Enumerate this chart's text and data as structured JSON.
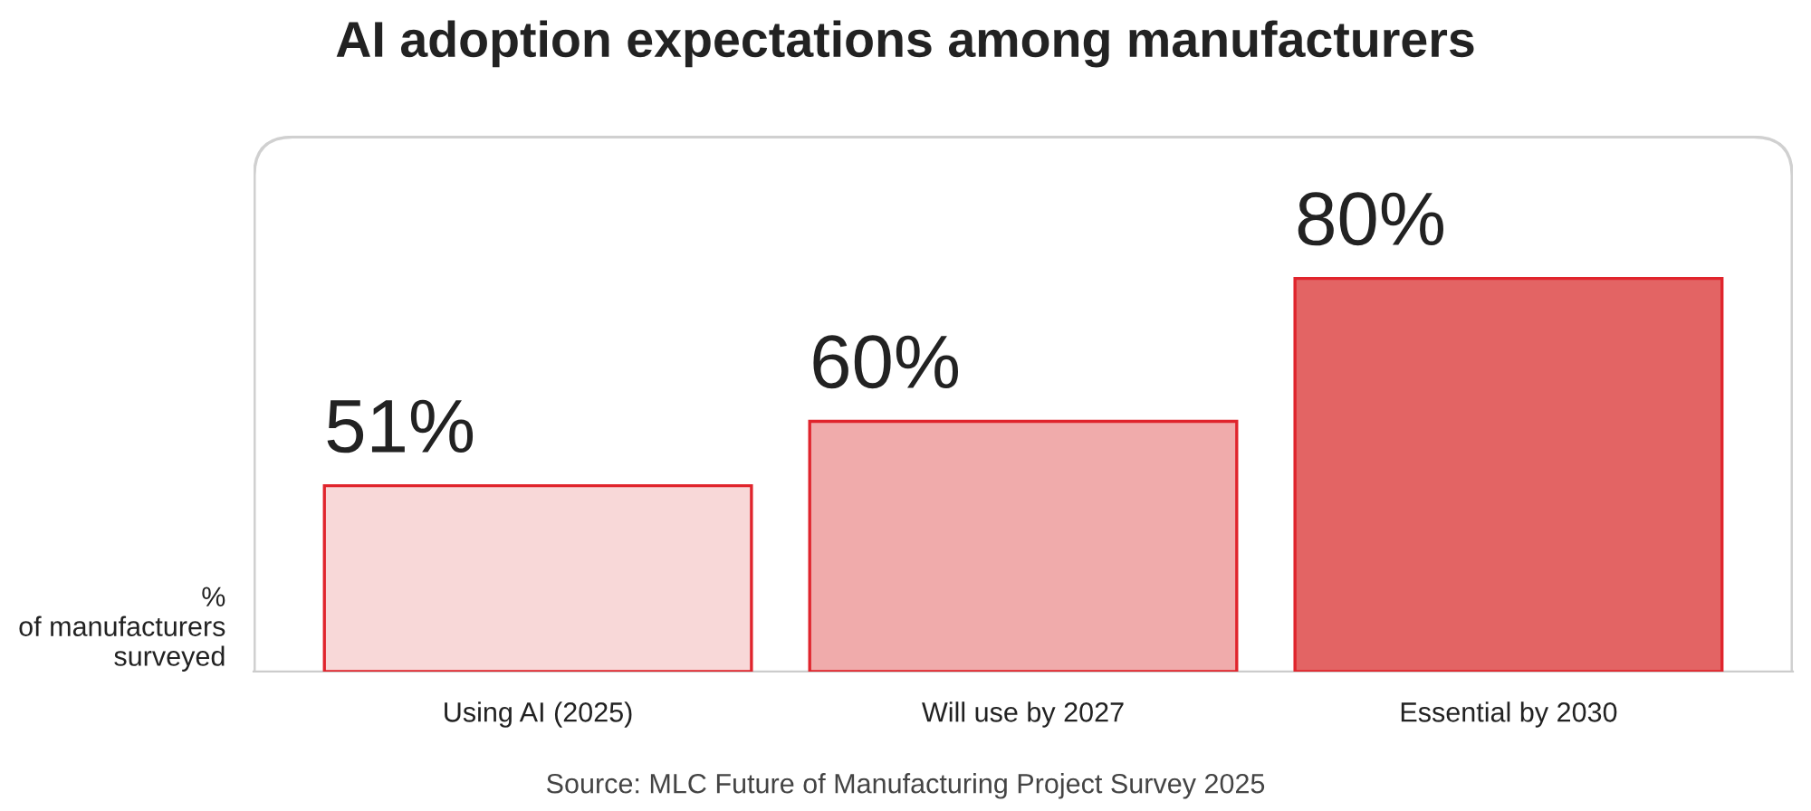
{
  "chart_data": {
    "type": "bar",
    "title": "AI adoption expectations among manufacturers",
    "ylabel": "%\nof manufacturers\nsurveyed",
    "categories": [
      "Using AI (2025)",
      "Will use by 2027",
      "Essential by 2030"
    ],
    "values": [
      51,
      60,
      80
    ],
    "colors": [
      "#f8d8d8",
      "#f0abab",
      "#e36464"
    ],
    "value_labels": [
      "51%",
      "60%",
      "80%"
    ],
    "ylim": [
      25,
      100
    ],
    "tick_labels": "x",
    "grid": false,
    "legend": false,
    "annotations": [
      "Source: MLC Future of Manufacturing Project Survey 2025"
    ]
  }
}
